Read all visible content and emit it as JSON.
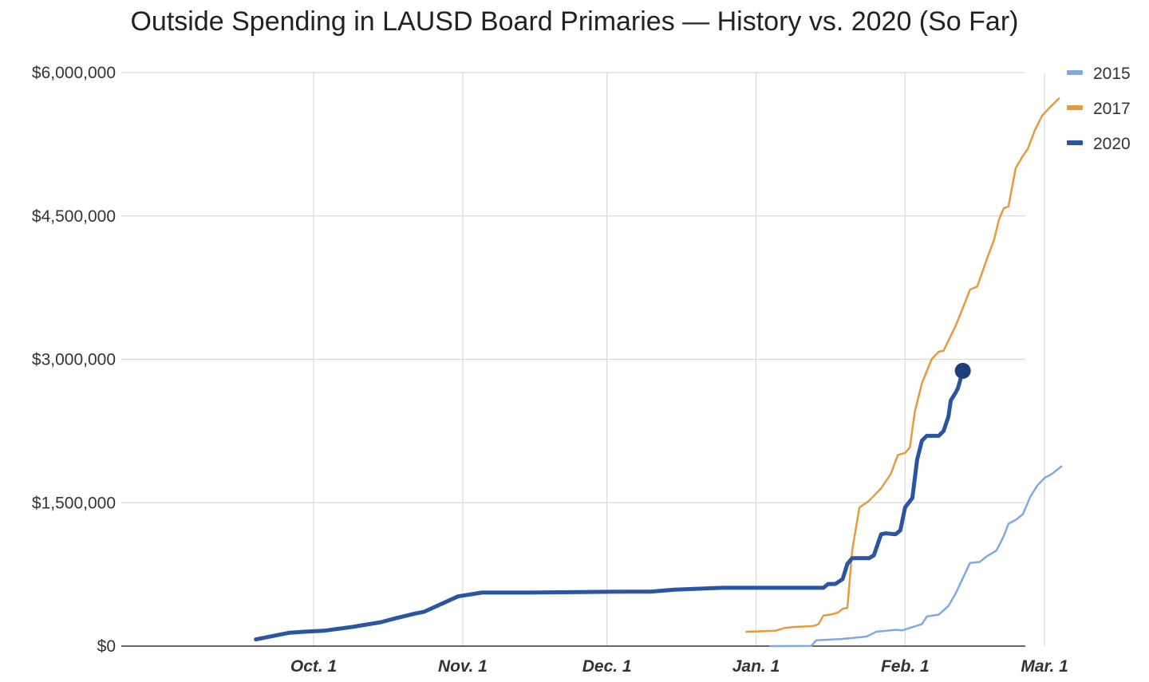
{
  "chart_data": {
    "type": "line",
    "title": "Outside Spending in LAUSD Board Primaries — History vs. 2020 (So Far)",
    "xlabel": "",
    "ylabel": "",
    "x_unit": "days since Oct. 1",
    "xlim": [
      -40,
      148
    ],
    "ylim": [
      0,
      6000000
    ],
    "y_ticks": [
      {
        "value": 0,
        "label": "$0"
      },
      {
        "value": 1500000,
        "label": "$1,500,000"
      },
      {
        "value": 3000000,
        "label": "$3,000,000"
      },
      {
        "value": 4500000,
        "label": "$4,500,000"
      },
      {
        "value": 6000000,
        "label": "$6,000,000"
      }
    ],
    "x_ticks": [
      {
        "value": 0,
        "label": "Oct. 1"
      },
      {
        "value": 31,
        "label": "Nov. 1"
      },
      {
        "value": 61,
        "label": "Dec. 1"
      },
      {
        "value": 92,
        "label": "Jan. 1"
      },
      {
        "value": 123,
        "label": "Feb. 1"
      },
      {
        "value": 152,
        "label": "Mar. 1"
      }
    ],
    "grid": true,
    "legend_position": "top-right",
    "series": [
      {
        "name": "2015",
        "color": "#7fa9e3",
        "width": 2.5,
        "points": [
          [
            95,
            0
          ],
          [
            103.5,
            2000
          ],
          [
            104.5,
            60000
          ],
          [
            110,
            75000
          ],
          [
            115,
            100000
          ],
          [
            117,
            150000
          ],
          [
            121,
            170000
          ],
          [
            122.5,
            165000
          ],
          [
            124,
            190000
          ],
          [
            126.5,
            230000
          ],
          [
            127.5,
            310000
          ],
          [
            130,
            330000
          ],
          [
            132,
            420000
          ],
          [
            133.5,
            550000
          ],
          [
            136.5,
            870000
          ],
          [
            138.5,
            880000
          ],
          [
            140,
            940000
          ],
          [
            142,
            1000000
          ],
          [
            143.5,
            1150000
          ],
          [
            144.5,
            1280000
          ],
          [
            146,
            1320000
          ],
          [
            147.5,
            1380000
          ],
          [
            149,
            1560000
          ],
          [
            150.5,
            1680000
          ],
          [
            152,
            1760000
          ],
          [
            153.5,
            1800000
          ],
          [
            155.5,
            1880000
          ]
        ]
      },
      {
        "name": "2017",
        "color": "#e69a3c",
        "width": 2.5,
        "points": [
          [
            90,
            150000
          ],
          [
            96,
            160000
          ],
          [
            98,
            190000
          ],
          [
            100,
            200000
          ],
          [
            104,
            210000
          ],
          [
            105,
            230000
          ],
          [
            106,
            320000
          ],
          [
            107.5,
            330000
          ],
          [
            109,
            350000
          ],
          [
            110,
            390000
          ],
          [
            111,
            400000
          ],
          [
            112,
            1000000
          ],
          [
            113.5,
            1450000
          ],
          [
            115.5,
            1520000
          ],
          [
            118,
            1650000
          ],
          [
            120,
            1800000
          ],
          [
            121.5,
            2000000
          ],
          [
            123,
            2020000
          ],
          [
            124,
            2080000
          ],
          [
            125,
            2450000
          ],
          [
            126.5,
            2750000
          ],
          [
            128.5,
            3000000
          ],
          [
            130,
            3080000
          ],
          [
            131,
            3090000
          ],
          [
            133.5,
            3350000
          ],
          [
            135.5,
            3600000
          ],
          [
            136.5,
            3730000
          ],
          [
            138,
            3760000
          ],
          [
            140,
            4050000
          ],
          [
            141.5,
            4250000
          ],
          [
            142.5,
            4460000
          ],
          [
            143.5,
            4580000
          ],
          [
            144.5,
            4600000
          ],
          [
            146,
            5000000
          ],
          [
            147.5,
            5130000
          ],
          [
            148.5,
            5200000
          ],
          [
            150,
            5400000
          ],
          [
            151.5,
            5550000
          ],
          [
            153,
            5630000
          ],
          [
            155,
            5730000
          ]
        ]
      },
      {
        "name": "2020",
        "color": "#2b55a0",
        "width": 5,
        "points": [
          [
            -12,
            70000
          ],
          [
            -5,
            140000
          ],
          [
            -2,
            150000
          ],
          [
            2,
            160000
          ],
          [
            8,
            200000
          ],
          [
            14,
            250000
          ],
          [
            17,
            290000
          ],
          [
            21,
            340000
          ],
          [
            23,
            360000
          ],
          [
            30,
            520000
          ],
          [
            35,
            560000
          ],
          [
            45,
            560000
          ],
          [
            65,
            570000
          ],
          [
            70,
            570000
          ],
          [
            75,
            590000
          ],
          [
            85,
            610000
          ],
          [
            95,
            610000
          ],
          [
            106,
            610000
          ],
          [
            107,
            650000
          ],
          [
            108.5,
            650000
          ],
          [
            110,
            700000
          ],
          [
            111,
            860000
          ],
          [
            112,
            920000
          ],
          [
            115.5,
            920000
          ],
          [
            116.5,
            950000
          ],
          [
            118,
            1170000
          ],
          [
            119,
            1180000
          ],
          [
            121,
            1170000
          ],
          [
            122,
            1210000
          ],
          [
            123,
            1450000
          ],
          [
            124.5,
            1550000
          ],
          [
            125.5,
            1950000
          ],
          [
            126.5,
            2150000
          ],
          [
            127.5,
            2200000
          ],
          [
            130,
            2200000
          ],
          [
            131,
            2250000
          ],
          [
            132,
            2400000
          ],
          [
            132.5,
            2570000
          ],
          [
            133.5,
            2650000
          ],
          [
            134,
            2700000
          ],
          [
            135,
            2880000
          ]
        ],
        "endpoint_marker": true
      }
    ]
  }
}
